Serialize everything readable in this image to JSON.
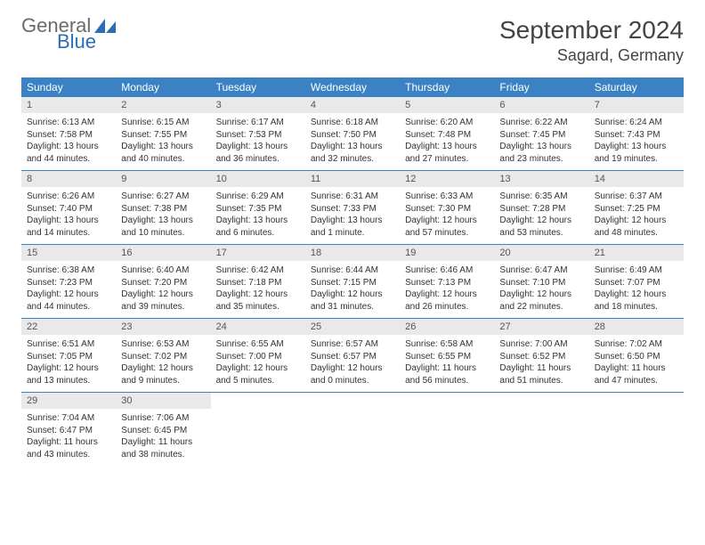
{
  "logo": {
    "general": "General",
    "blue": "Blue",
    "icon_color": "#2a6fb5"
  },
  "title": "September 2024",
  "location": "Sagard, Germany",
  "colors": {
    "header_bg": "#3b82c4",
    "header_text": "#ffffff",
    "daynum_bg": "#e9e9e9",
    "week_border": "#3b82c4",
    "page_bg": "#ffffff"
  },
  "day_headers": [
    "Sunday",
    "Monday",
    "Tuesday",
    "Wednesday",
    "Thursday",
    "Friday",
    "Saturday"
  ],
  "weeks": [
    [
      {
        "num": "1",
        "sunrise": "Sunrise: 6:13 AM",
        "sunset": "Sunset: 7:58 PM",
        "daylight1": "Daylight: 13 hours",
        "daylight2": "and 44 minutes."
      },
      {
        "num": "2",
        "sunrise": "Sunrise: 6:15 AM",
        "sunset": "Sunset: 7:55 PM",
        "daylight1": "Daylight: 13 hours",
        "daylight2": "and 40 minutes."
      },
      {
        "num": "3",
        "sunrise": "Sunrise: 6:17 AM",
        "sunset": "Sunset: 7:53 PM",
        "daylight1": "Daylight: 13 hours",
        "daylight2": "and 36 minutes."
      },
      {
        "num": "4",
        "sunrise": "Sunrise: 6:18 AM",
        "sunset": "Sunset: 7:50 PM",
        "daylight1": "Daylight: 13 hours",
        "daylight2": "and 32 minutes."
      },
      {
        "num": "5",
        "sunrise": "Sunrise: 6:20 AM",
        "sunset": "Sunset: 7:48 PM",
        "daylight1": "Daylight: 13 hours",
        "daylight2": "and 27 minutes."
      },
      {
        "num": "6",
        "sunrise": "Sunrise: 6:22 AM",
        "sunset": "Sunset: 7:45 PM",
        "daylight1": "Daylight: 13 hours",
        "daylight2": "and 23 minutes."
      },
      {
        "num": "7",
        "sunrise": "Sunrise: 6:24 AM",
        "sunset": "Sunset: 7:43 PM",
        "daylight1": "Daylight: 13 hours",
        "daylight2": "and 19 minutes."
      }
    ],
    [
      {
        "num": "8",
        "sunrise": "Sunrise: 6:26 AM",
        "sunset": "Sunset: 7:40 PM",
        "daylight1": "Daylight: 13 hours",
        "daylight2": "and 14 minutes."
      },
      {
        "num": "9",
        "sunrise": "Sunrise: 6:27 AM",
        "sunset": "Sunset: 7:38 PM",
        "daylight1": "Daylight: 13 hours",
        "daylight2": "and 10 minutes."
      },
      {
        "num": "10",
        "sunrise": "Sunrise: 6:29 AM",
        "sunset": "Sunset: 7:35 PM",
        "daylight1": "Daylight: 13 hours",
        "daylight2": "and 6 minutes."
      },
      {
        "num": "11",
        "sunrise": "Sunrise: 6:31 AM",
        "sunset": "Sunset: 7:33 PM",
        "daylight1": "Daylight: 13 hours",
        "daylight2": "and 1 minute."
      },
      {
        "num": "12",
        "sunrise": "Sunrise: 6:33 AM",
        "sunset": "Sunset: 7:30 PM",
        "daylight1": "Daylight: 12 hours",
        "daylight2": "and 57 minutes."
      },
      {
        "num": "13",
        "sunrise": "Sunrise: 6:35 AM",
        "sunset": "Sunset: 7:28 PM",
        "daylight1": "Daylight: 12 hours",
        "daylight2": "and 53 minutes."
      },
      {
        "num": "14",
        "sunrise": "Sunrise: 6:37 AM",
        "sunset": "Sunset: 7:25 PM",
        "daylight1": "Daylight: 12 hours",
        "daylight2": "and 48 minutes."
      }
    ],
    [
      {
        "num": "15",
        "sunrise": "Sunrise: 6:38 AM",
        "sunset": "Sunset: 7:23 PM",
        "daylight1": "Daylight: 12 hours",
        "daylight2": "and 44 minutes."
      },
      {
        "num": "16",
        "sunrise": "Sunrise: 6:40 AM",
        "sunset": "Sunset: 7:20 PM",
        "daylight1": "Daylight: 12 hours",
        "daylight2": "and 39 minutes."
      },
      {
        "num": "17",
        "sunrise": "Sunrise: 6:42 AM",
        "sunset": "Sunset: 7:18 PM",
        "daylight1": "Daylight: 12 hours",
        "daylight2": "and 35 minutes."
      },
      {
        "num": "18",
        "sunrise": "Sunrise: 6:44 AM",
        "sunset": "Sunset: 7:15 PM",
        "daylight1": "Daylight: 12 hours",
        "daylight2": "and 31 minutes."
      },
      {
        "num": "19",
        "sunrise": "Sunrise: 6:46 AM",
        "sunset": "Sunset: 7:13 PM",
        "daylight1": "Daylight: 12 hours",
        "daylight2": "and 26 minutes."
      },
      {
        "num": "20",
        "sunrise": "Sunrise: 6:47 AM",
        "sunset": "Sunset: 7:10 PM",
        "daylight1": "Daylight: 12 hours",
        "daylight2": "and 22 minutes."
      },
      {
        "num": "21",
        "sunrise": "Sunrise: 6:49 AM",
        "sunset": "Sunset: 7:07 PM",
        "daylight1": "Daylight: 12 hours",
        "daylight2": "and 18 minutes."
      }
    ],
    [
      {
        "num": "22",
        "sunrise": "Sunrise: 6:51 AM",
        "sunset": "Sunset: 7:05 PM",
        "daylight1": "Daylight: 12 hours",
        "daylight2": "and 13 minutes."
      },
      {
        "num": "23",
        "sunrise": "Sunrise: 6:53 AM",
        "sunset": "Sunset: 7:02 PM",
        "daylight1": "Daylight: 12 hours",
        "daylight2": "and 9 minutes."
      },
      {
        "num": "24",
        "sunrise": "Sunrise: 6:55 AM",
        "sunset": "Sunset: 7:00 PM",
        "daylight1": "Daylight: 12 hours",
        "daylight2": "and 5 minutes."
      },
      {
        "num": "25",
        "sunrise": "Sunrise: 6:57 AM",
        "sunset": "Sunset: 6:57 PM",
        "daylight1": "Daylight: 12 hours",
        "daylight2": "and 0 minutes."
      },
      {
        "num": "26",
        "sunrise": "Sunrise: 6:58 AM",
        "sunset": "Sunset: 6:55 PM",
        "daylight1": "Daylight: 11 hours",
        "daylight2": "and 56 minutes."
      },
      {
        "num": "27",
        "sunrise": "Sunrise: 7:00 AM",
        "sunset": "Sunset: 6:52 PM",
        "daylight1": "Daylight: 11 hours",
        "daylight2": "and 51 minutes."
      },
      {
        "num": "28",
        "sunrise": "Sunrise: 7:02 AM",
        "sunset": "Sunset: 6:50 PM",
        "daylight1": "Daylight: 11 hours",
        "daylight2": "and 47 minutes."
      }
    ],
    [
      {
        "num": "29",
        "sunrise": "Sunrise: 7:04 AM",
        "sunset": "Sunset: 6:47 PM",
        "daylight1": "Daylight: 11 hours",
        "daylight2": "and 43 minutes."
      },
      {
        "num": "30",
        "sunrise": "Sunrise: 7:06 AM",
        "sunset": "Sunset: 6:45 PM",
        "daylight1": "Daylight: 11 hours",
        "daylight2": "and 38 minutes."
      },
      {
        "empty": true
      },
      {
        "empty": true
      },
      {
        "empty": true
      },
      {
        "empty": true
      },
      {
        "empty": true
      }
    ]
  ]
}
